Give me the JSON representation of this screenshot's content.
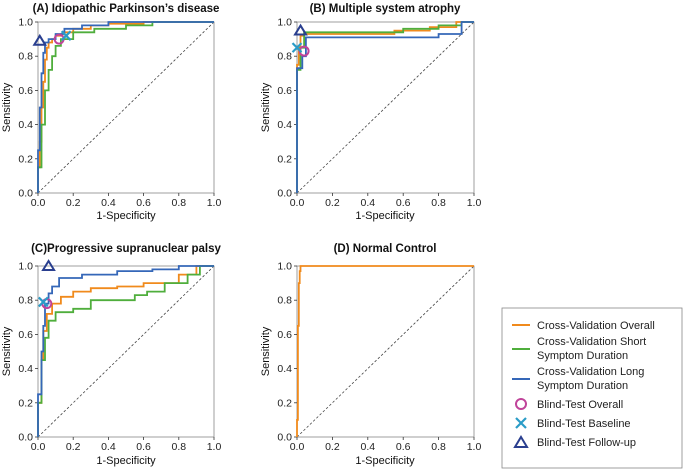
{
  "colors": {
    "cv_overall": "#f08a1c",
    "cv_short": "#4fae3c",
    "cv_long": "#3567b8",
    "bt_overall": "#c0449a",
    "bt_baseline": "#2b9cc7",
    "bt_followup": "#2a3f8f",
    "diagonal": "#444444",
    "frame": "#888888"
  },
  "legend": {
    "cv_overall": "Cross-Validation Overall",
    "cv_short_line1": "Cross-Validation Short",
    "cv_short_line2": "Symptom Duration",
    "cv_long_line1": "Cross-Validation Long",
    "cv_long_line2": "Symptom Duration",
    "bt_overall": "Blind-Test Overall",
    "bt_baseline": "Blind-Test Baseline",
    "bt_followup": "Blind-Test Follow-up"
  },
  "chart_data": [
    {
      "type": "line",
      "title": "(A) Idiopathic Parkinson’s disease",
      "xlabel": "1-Specificity",
      "ylabel": "Sensitivity",
      "xlim": [
        0,
        1
      ],
      "ylim": [
        0,
        1
      ],
      "ticks": [
        "0.0",
        "0.2",
        "0.4",
        "0.6",
        "0.8",
        "1.0"
      ],
      "series": [
        {
          "name": "Cross-Validation Overall",
          "key": "cv_overall",
          "x": [
            0,
            0,
            0.01,
            0.01,
            0.02,
            0.02,
            0.03,
            0.03,
            0.04,
            0.04,
            0.05,
            0.05,
            0.06,
            0.06,
            0.08,
            0.08,
            0.1,
            0.1,
            0.14,
            0.14,
            0.2,
            0.2,
            0.3,
            0.3,
            0.4,
            0.4,
            0.6,
            0.6,
            1
          ],
          "y": [
            0,
            0.15,
            0.15,
            0.3,
            0.3,
            0.5,
            0.5,
            0.65,
            0.65,
            0.78,
            0.78,
            0.85,
            0.85,
            0.88,
            0.88,
            0.9,
            0.9,
            0.92,
            0.92,
            0.94,
            0.94,
            0.96,
            0.96,
            0.98,
            0.98,
            0.99,
            0.99,
            1,
            1
          ]
        },
        {
          "name": "Cross-Validation Short Symptom Duration",
          "key": "cv_short",
          "x": [
            0,
            0,
            0.02,
            0.02,
            0.04,
            0.04,
            0.06,
            0.06,
            0.08,
            0.08,
            0.1,
            0.1,
            0.13,
            0.13,
            0.2,
            0.2,
            0.32,
            0.32,
            0.5,
            0.5,
            0.65,
            0.65,
            1
          ],
          "y": [
            0,
            0.15,
            0.15,
            0.4,
            0.4,
            0.6,
            0.6,
            0.72,
            0.72,
            0.8,
            0.8,
            0.86,
            0.86,
            0.9,
            0.9,
            0.94,
            0.94,
            0.96,
            0.96,
            0.98,
            0.98,
            1,
            1
          ]
        },
        {
          "name": "Cross-Validation Long Symptom Duration",
          "key": "cv_long",
          "x": [
            0,
            0,
            0.01,
            0.01,
            0.02,
            0.02,
            0.03,
            0.03,
            0.04,
            0.04,
            0.06,
            0.06,
            0.1,
            0.1,
            0.15,
            0.15,
            0.25,
            0.25,
            0.4,
            0.4,
            1
          ],
          "y": [
            0,
            0.25,
            0.25,
            0.5,
            0.5,
            0.7,
            0.7,
            0.82,
            0.82,
            0.88,
            0.88,
            0.9,
            0.9,
            0.93,
            0.93,
            0.96,
            0.96,
            0.98,
            0.98,
            1,
            1
          ]
        }
      ],
      "points": [
        {
          "name": "Blind-Test Overall",
          "key": "bt_overall",
          "marker": "circle",
          "x": 0.12,
          "y": 0.9
        },
        {
          "name": "Blind-Test Baseline",
          "key": "bt_baseline",
          "marker": "x",
          "x": 0.16,
          "y": 0.92
        },
        {
          "name": "Blind-Test Follow-up",
          "key": "bt_followup",
          "marker": "triangle",
          "x": 0.01,
          "y": 0.89
        }
      ]
    },
    {
      "type": "line",
      "title": "(B) Multiple system atrophy",
      "xlabel": "1-Specificity",
      "ylabel": "Sensitivity",
      "xlim": [
        0,
        1
      ],
      "ylim": [
        0,
        1
      ],
      "ticks": [
        "0.0",
        "0.2",
        "0.4",
        "0.6",
        "0.8",
        "1.0"
      ],
      "series": [
        {
          "name": "Cross-Validation Overall",
          "key": "cv_overall",
          "x": [
            0,
            0,
            0.01,
            0.01,
            0.02,
            0.02,
            0.04,
            0.04,
            0.55,
            0.55,
            0.75,
            0.75,
            0.9,
            0.9,
            1
          ],
          "y": [
            0,
            0.75,
            0.75,
            0.85,
            0.85,
            0.92,
            0.92,
            0.93,
            0.93,
            0.95,
            0.95,
            0.97,
            0.97,
            1,
            1
          ]
        },
        {
          "name": "Cross-Validation Short Symptom Duration",
          "key": "cv_short",
          "x": [
            0,
            0,
            0.02,
            0.02,
            0.04,
            0.04,
            0.6,
            0.6,
            0.8,
            0.8,
            0.93,
            0.93,
            1
          ],
          "y": [
            0,
            0.72,
            0.72,
            0.85,
            0.85,
            0.94,
            0.94,
            0.96,
            0.96,
            0.98,
            0.98,
            1,
            1
          ]
        },
        {
          "name": "Cross-Validation Long Symptom Duration",
          "key": "cv_long",
          "x": [
            0,
            0,
            0.03,
            0.03,
            0.05,
            0.05,
            0.8,
            0.8,
            0.93,
            0.93,
            1
          ],
          "y": [
            0,
            0.73,
            0.73,
            0.8,
            0.8,
            0.91,
            0.91,
            0.93,
            0.93,
            1,
            1
          ]
        }
      ],
      "points": [
        {
          "name": "Blind-Test Overall",
          "key": "bt_overall",
          "marker": "circle",
          "x": 0.04,
          "y": 0.83
        },
        {
          "name": "Blind-Test Baseline",
          "key": "bt_baseline",
          "marker": "x",
          "x": 0.0,
          "y": 0.85
        },
        {
          "name": "Blind-Test Follow-up",
          "key": "bt_followup",
          "marker": "triangle",
          "x": 0.02,
          "y": 0.95
        }
      ]
    },
    {
      "type": "line",
      "title": "(C)Progressive supranuclear palsy",
      "xlabel": "1-Specificity",
      "ylabel": "Sensitivity",
      "xlim": [
        0,
        1
      ],
      "ylim": [
        0,
        1
      ],
      "ticks": [
        "0.0",
        "0.2",
        "0.4",
        "0.6",
        "0.8",
        "1.0"
      ],
      "series": [
        {
          "name": "Cross-Validation Overall",
          "key": "cv_overall",
          "x": [
            0,
            0,
            0.02,
            0.02,
            0.03,
            0.03,
            0.05,
            0.05,
            0.08,
            0.08,
            0.13,
            0.13,
            0.2,
            0.2,
            0.3,
            0.3,
            0.45,
            0.45,
            0.6,
            0.6,
            0.8,
            0.8,
            0.9,
            0.9,
            1
          ],
          "y": [
            0,
            0.2,
            0.2,
            0.45,
            0.45,
            0.62,
            0.62,
            0.72,
            0.72,
            0.78,
            0.78,
            0.82,
            0.82,
            0.85,
            0.85,
            0.87,
            0.87,
            0.88,
            0.88,
            0.9,
            0.9,
            0.95,
            0.95,
            1,
            1
          ]
        },
        {
          "name": "Cross-Validation Short Symptom Duration",
          "key": "cv_short",
          "x": [
            0,
            0,
            0.02,
            0.02,
            0.04,
            0.04,
            0.06,
            0.06,
            0.1,
            0.1,
            0.2,
            0.2,
            0.3,
            0.3,
            0.55,
            0.55,
            0.62,
            0.62,
            0.72,
            0.72,
            0.85,
            0.85,
            0.92,
            0.92,
            1
          ],
          "y": [
            0,
            0.2,
            0.2,
            0.45,
            0.45,
            0.58,
            0.58,
            0.68,
            0.68,
            0.73,
            0.73,
            0.75,
            0.75,
            0.8,
            0.8,
            0.83,
            0.83,
            0.85,
            0.85,
            0.9,
            0.9,
            0.95,
            0.95,
            1,
            1
          ]
        },
        {
          "name": "Cross-Validation Long Symptom Duration",
          "key": "cv_long",
          "x": [
            0,
            0,
            0.02,
            0.02,
            0.03,
            0.03,
            0.04,
            0.04,
            0.06,
            0.06,
            0.08,
            0.08,
            0.12,
            0.12,
            0.25,
            0.25,
            0.45,
            0.45,
            0.65,
            0.65,
            0.8,
            0.8,
            1
          ],
          "y": [
            0,
            0.25,
            0.25,
            0.5,
            0.5,
            0.65,
            0.65,
            0.78,
            0.78,
            0.84,
            0.84,
            0.88,
            0.88,
            0.93,
            0.93,
            0.95,
            0.95,
            0.97,
            0.97,
            0.98,
            0.98,
            1,
            1
          ]
        }
      ],
      "points": [
        {
          "name": "Blind-Test Overall",
          "key": "bt_overall",
          "marker": "circle",
          "x": 0.05,
          "y": 0.78
        },
        {
          "name": "Blind-Test Baseline",
          "key": "bt_baseline",
          "marker": "x",
          "x": 0.03,
          "y": 0.79
        },
        {
          "name": "Blind-Test Follow-up",
          "key": "bt_followup",
          "marker": "triangle",
          "x": 0.06,
          "y": 1.0
        }
      ]
    },
    {
      "type": "line",
      "title": "(D) Normal Control",
      "xlabel": "1-Specificity",
      "ylabel": "Sensitivity",
      "xlim": [
        0,
        1
      ],
      "ylim": [
        0,
        1
      ],
      "ticks": [
        "0.0",
        "0.2",
        "0.4",
        "0.6",
        "0.8",
        "1.0"
      ],
      "series": [
        {
          "name": "Cross-Validation Overall",
          "key": "cv_overall",
          "x": [
            0,
            0,
            0.005,
            0.005,
            0.01,
            0.01,
            0.015,
            0.015,
            0.02,
            0.02,
            1
          ],
          "y": [
            0,
            0.1,
            0.1,
            0.65,
            0.65,
            0.9,
            0.9,
            0.97,
            0.97,
            1,
            1
          ]
        }
      ],
      "points": []
    }
  ]
}
